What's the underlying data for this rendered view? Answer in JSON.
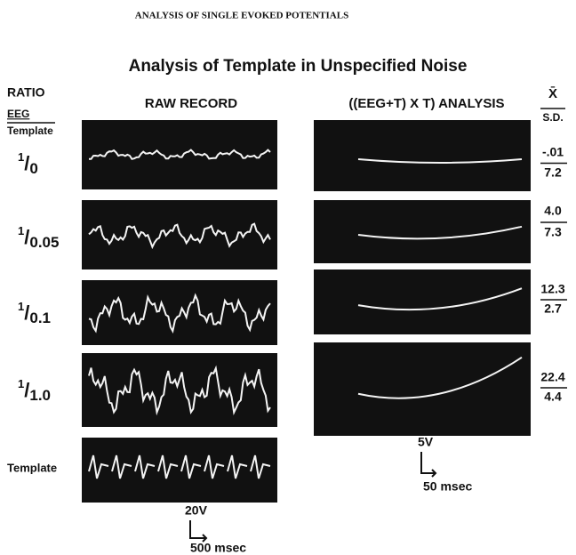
{
  "header": {
    "running_title": "ANALYSIS OF SINGLE EVOKED POTENTIALS"
  },
  "figure": {
    "title": "Analysis of Template in Unspecified Noise",
    "ratio_header": {
      "label": "RATIO",
      "numerator": "EEG",
      "denominator": "Template"
    },
    "raw_header": "RAW RECORD",
    "analysis_header": "((EEG+T) X T) ANALYSIS",
    "stats_header": {
      "mean": "X̄",
      "sd": "S.D."
    },
    "rows": [
      {
        "numerator": "1",
        "denominator": "0",
        "mean": "-.01",
        "sd": "7.2"
      },
      {
        "numerator": "1",
        "denominator": "0.05",
        "mean": "4.0",
        "sd": "7.3"
      },
      {
        "numerator": "1",
        "denominator": "0.1",
        "mean": "12.3",
        "sd": "2.7"
      },
      {
        "numerator": "1",
        "denominator": "1.0",
        "mean": "22.4",
        "sd": "4.4"
      }
    ],
    "template_label": "Template",
    "analysis_scale": {
      "amplitude": "5V",
      "time": "50 msec"
    },
    "raw_scale": {
      "amplitude": "20V",
      "time": "500 msec"
    }
  }
}
